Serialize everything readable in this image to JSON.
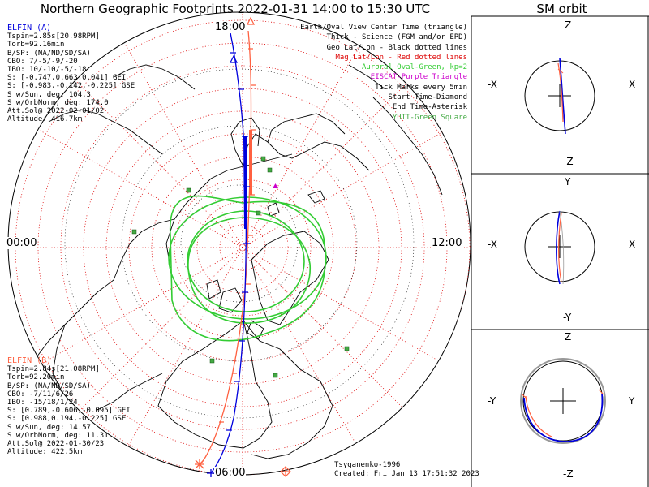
{
  "title": "Northern Geographic Footprints 2022-01-31 14:00 to 15:30 UTC",
  "sm_title": "SM orbit",
  "colors": {
    "elfin_a": "#0000dd",
    "elfin_b": "#ff6040",
    "grid": "#dd0000",
    "oval": "#33cc33",
    "eiscat": "#cc00cc",
    "yuti": "#44aa44"
  },
  "elfin_a": {
    "header": "ELFIN (A)",
    "lines": [
      "Tspin=2.85s[20.98RPM]",
      "Torb=92.16min",
      "B/SP: (NA/ND/SD/SA)",
      "CBO: 7/-5/-9/-20",
      "IBO: 10/-10/-5/-18",
      "S: [-0.747,0.663,0.041] GEI",
      "S: [-0.983,-0.142,-0.225] GSE",
      "S w/Sun, deg: 104.3",
      "S w/OrbNorm, deg: 174.0",
      "Att.Sol@ 2022-02-01/02",
      "Altitude: 416.7km"
    ]
  },
  "elfin_b": {
    "header": "ELFIN (B)",
    "lines": [
      "Tspin=2.84s[21.08RPM]",
      "Torb=92.20min",
      "B/SP: (NA/ND/SD/SA)",
      "CBO: -7/11/6/26",
      "IBO: -15/18/1/24",
      "S: [0.789,-0.606,-0.095] GEI",
      "S: [0.988,0.194,-0.225] GSE",
      "S w/Sun, deg: 14.57",
      "S w/OrbNorm, deg: 11.31",
      "Att.Sol@ 2022-01-30/23",
      "Altitude: 422.5km"
    ]
  },
  "legend": [
    {
      "text": "Earth/Oval View Center Time (triangle)",
      "color": "#000000"
    },
    {
      "text": "Thick - Science (FGM and/or EPD)",
      "color": "#000000"
    },
    {
      "text": "Geo Lat/Lon - Black dotted lines",
      "color": "#000000"
    },
    {
      "text": "Mag Lat/Lon - Red dotted lines",
      "color": "#dd0000"
    },
    {
      "text": "Auroral Oval-Green, kp=2",
      "color": "#33cc33"
    },
    {
      "text": "EISCAT-Purple Triangle",
      "color": "#cc00cc"
    },
    {
      "text": "Tick Marks every 5min",
      "color": "#000000"
    },
    {
      "text": "Start Time-Diamond",
      "color": "#000000"
    },
    {
      "text": "End Time-Asterisk",
      "color": "#000000"
    },
    {
      "text": "YUTI-Green Square",
      "color": "#44aa44"
    }
  ],
  "hours": {
    "top": "18:00",
    "left": "00:00",
    "right": "12:00",
    "bottom": "06:00"
  },
  "credit": {
    "author": "Tsyganenko-1996",
    "created": "Created: Fri Jan 13 17:51:32 2023"
  },
  "sm_panels": [
    {
      "top": "Z",
      "bottom": "-Z",
      "left": "-X",
      "right": "X"
    },
    {
      "top": "Y",
      "bottom": "-Y",
      "left": "-X",
      "right": "X"
    },
    {
      "top": "Z",
      "bottom": "-Z",
      "left": "-Y",
      "right": "Y"
    }
  ]
}
